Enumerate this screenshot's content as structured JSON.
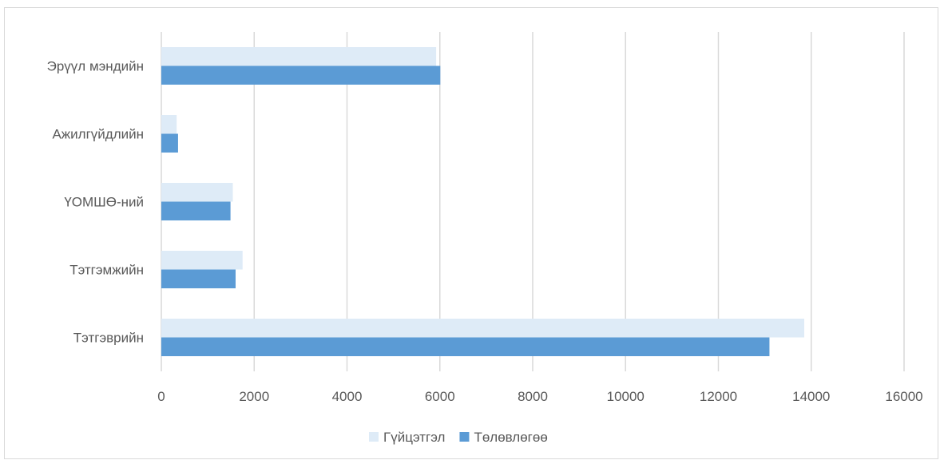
{
  "chart_data": {
    "type": "bar",
    "orientation": "horizontal",
    "title": "",
    "xlabel": "",
    "ylabel": "",
    "categories": [
      "Тэтгэврийн",
      "Тэтгэмжийн",
      "ҮОМШӨ-ний",
      "Ажилгүйдлийн",
      "Эрүүл мэндийн"
    ],
    "series": [
      {
        "name": "Гүйцэтгэл",
        "color": "#deebf7",
        "values": [
          13850,
          1750,
          1540,
          330,
          5920
        ]
      },
      {
        "name": "Төлөвлөгөө",
        "color": "#5b9bd5",
        "values": [
          13100,
          1600,
          1490,
          360,
          6010
        ]
      }
    ],
    "xlim": [
      0,
      16000
    ],
    "xticks": [
      "0",
      "2000",
      "4000",
      "6000",
      "8000",
      "10000",
      "12000",
      "14000",
      "16000"
    ],
    "grid": "vertical",
    "legend": "bottom"
  }
}
